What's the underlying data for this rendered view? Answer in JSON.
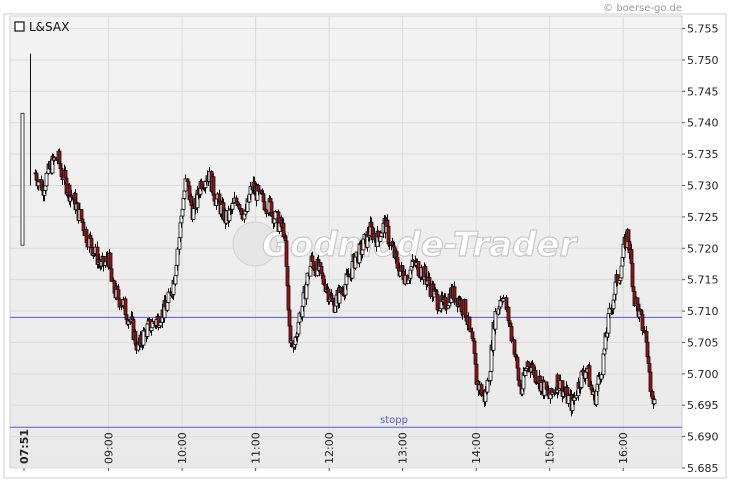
{
  "credit": "© boerse-go.de",
  "watermark": "Godmode-Trader",
  "chart_data": {
    "type": "candlestick",
    "legend": "L&SAX",
    "ylim": [
      5.685,
      5.757
    ],
    "y_ticks": [
      "5.755",
      "5.750",
      "5.745",
      "5.740",
      "5.735",
      "5.730",
      "5.725",
      "5.720",
      "5.715",
      "5.710",
      "5.705",
      "5.700",
      "5.695",
      "5.690",
      "5.685"
    ],
    "x_ticks": [
      "07:51",
      "09:00",
      "10:00",
      "11:00",
      "12:00",
      "13:00",
      "14:00",
      "15:00",
      "16:00"
    ],
    "x_tick_hours": [
      7.85,
      9,
      10,
      11,
      12,
      13,
      14,
      15,
      16
    ],
    "x_range_hours": [
      7.85,
      16.5
    ],
    "grid": true,
    "legend_position": "top-left",
    "horizontal_lines": [
      {
        "value": 5.709,
        "label": "",
        "color": "#5a5ad0"
      },
      {
        "value": 5.6915,
        "label": "stopp",
        "color": "#5a5ad0"
      }
    ],
    "close_path": [
      [
        7.85,
        5.7205
      ],
      [
        7.92,
        5.7408
      ],
      [
        8.0,
        5.732
      ],
      [
        8.1,
        5.7295
      ],
      [
        8.2,
        5.733
      ],
      [
        8.3,
        5.7345
      ],
      [
        8.4,
        5.7305
      ],
      [
        8.55,
        5.727
      ],
      [
        8.7,
        5.722
      ],
      [
        8.8,
        5.7195
      ],
      [
        8.9,
        5.717
      ],
      [
        9.0,
        5.7185
      ],
      [
        9.05,
        5.7135
      ],
      [
        9.2,
        5.711
      ],
      [
        9.3,
        5.708
      ],
      [
        9.4,
        5.704
      ],
      [
        9.5,
        5.707
      ],
      [
        9.65,
        5.7085
      ],
      [
        9.8,
        5.711
      ],
      [
        9.9,
        5.716
      ],
      [
        10.0,
        5.727
      ],
      [
        10.05,
        5.7305
      ],
      [
        10.15,
        5.7255
      ],
      [
        10.25,
        5.7305
      ],
      [
        10.35,
        5.732
      ],
      [
        10.45,
        5.728
      ],
      [
        10.6,
        5.7245
      ],
      [
        10.75,
        5.728
      ],
      [
        10.85,
        5.725
      ],
      [
        10.95,
        5.73
      ],
      [
        11.05,
        5.728
      ],
      [
        11.2,
        5.7265
      ],
      [
        11.3,
        5.724
      ],
      [
        11.38,
        5.723
      ],
      [
        11.45,
        5.708
      ],
      [
        11.5,
        5.7035
      ],
      [
        11.58,
        5.7085
      ],
      [
        11.65,
        5.712
      ],
      [
        11.75,
        5.718
      ],
      [
        11.85,
        5.7165
      ],
      [
        11.95,
        5.714
      ],
      [
        12.05,
        5.711
      ],
      [
        12.15,
        5.713
      ],
      [
        12.25,
        5.715
      ],
      [
        12.35,
        5.7185
      ],
      [
        12.45,
        5.72
      ],
      [
        12.55,
        5.723
      ],
      [
        12.65,
        5.7215
      ],
      [
        12.75,
        5.724
      ],
      [
        12.85,
        5.72
      ],
      [
        12.95,
        5.7165
      ],
      [
        13.05,
        5.7155
      ],
      [
        13.15,
        5.7175
      ],
      [
        13.25,
        5.7165
      ],
      [
        13.35,
        5.7145
      ],
      [
        13.45,
        5.712
      ],
      [
        13.55,
        5.7105
      ],
      [
        13.65,
        5.713
      ],
      [
        13.75,
        5.712
      ],
      [
        13.85,
        5.71
      ],
      [
        13.95,
        5.704
      ],
      [
        14.0,
        5.699
      ],
      [
        14.1,
        5.696
      ],
      [
        14.15,
        5.698
      ],
      [
        14.25,
        5.709
      ],
      [
        14.35,
        5.713
      ],
      [
        14.45,
        5.708
      ],
      [
        14.5,
        5.705
      ],
      [
        14.55,
        5.701
      ],
      [
        14.6,
        5.697
      ],
      [
        14.7,
        5.702
      ],
      [
        14.8,
        5.7
      ],
      [
        14.9,
        5.698
      ],
      [
        15.0,
        5.696
      ],
      [
        15.1,
        5.699
      ],
      [
        15.2,
        5.697
      ],
      [
        15.3,
        5.695
      ],
      [
        15.4,
        5.699
      ],
      [
        15.5,
        5.701
      ],
      [
        15.55,
        5.698
      ],
      [
        15.6,
        5.696
      ],
      [
        15.7,
        5.701
      ],
      [
        15.75,
        5.705
      ],
      [
        15.85,
        5.712
      ],
      [
        15.95,
        5.7165
      ],
      [
        16.05,
        5.7225
      ],
      [
        16.1,
        5.718
      ],
      [
        16.15,
        5.712
      ],
      [
        16.2,
        5.71
      ],
      [
        16.3,
        5.706
      ],
      [
        16.35,
        5.7
      ],
      [
        16.42,
        5.695
      ]
    ]
  }
}
